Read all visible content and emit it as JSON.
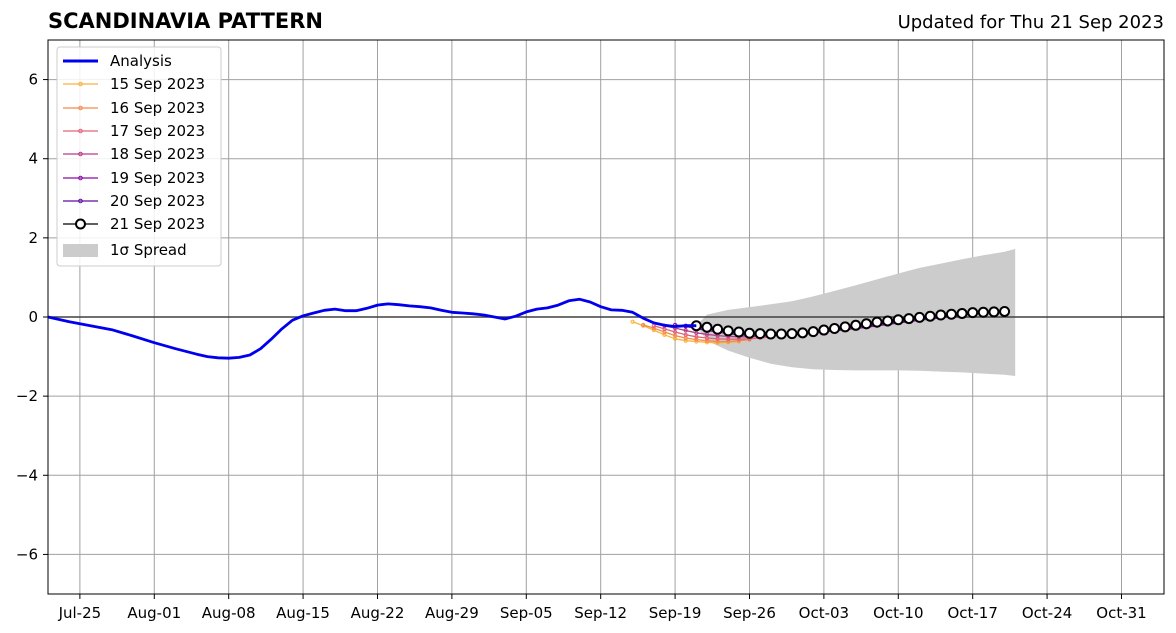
{
  "chart_data": {
    "type": "line",
    "title": "SCANDINAVIA PATTERN",
    "subtitle": "Updated for Thu 21 Sep 2023",
    "xlabel": "",
    "ylabel": "",
    "x_axis": {
      "start": "2023-07-22",
      "end": "2023-11-04",
      "tick_labels": [
        "Jul-25",
        "Aug-01",
        "Aug-08",
        "Aug-15",
        "Aug-22",
        "Aug-29",
        "Sep-05",
        "Sep-12",
        "Sep-19",
        "Sep-26",
        "Oct-03",
        "Oct-10",
        "Oct-17",
        "Oct-24",
        "Oct-31"
      ],
      "tick_dates": [
        "2023-07-25",
        "2023-08-01",
        "2023-08-08",
        "2023-08-15",
        "2023-08-22",
        "2023-08-29",
        "2023-09-05",
        "2023-09-12",
        "2023-09-19",
        "2023-09-26",
        "2023-10-03",
        "2023-10-10",
        "2023-10-17",
        "2023-10-24",
        "2023-10-31"
      ]
    },
    "y_axis": {
      "ylim": [
        -7,
        7
      ],
      "tick_values": [
        -6,
        -4,
        -2,
        0,
        2,
        4,
        6
      ],
      "tick_labels": [
        "−6",
        "−4",
        "−2",
        "0",
        "2",
        "4",
        "6"
      ]
    },
    "grid": true,
    "legend_position": "top-left",
    "analysis": {
      "name": "Analysis",
      "color": "#0000ee",
      "points": [
        [
          "2023-07-22",
          0.0
        ],
        [
          "2023-07-24",
          -0.12
        ],
        [
          "2023-07-26",
          -0.22
        ],
        [
          "2023-07-28",
          -0.32
        ],
        [
          "2023-07-30",
          -0.48
        ],
        [
          "2023-08-01",
          -0.65
        ],
        [
          "2023-08-03",
          -0.8
        ],
        [
          "2023-08-05",
          -0.94
        ],
        [
          "2023-08-06",
          -1.0
        ],
        [
          "2023-08-07",
          -1.03
        ],
        [
          "2023-08-08",
          -1.04
        ],
        [
          "2023-08-09",
          -1.02
        ],
        [
          "2023-08-10",
          -0.96
        ],
        [
          "2023-08-11",
          -0.8
        ],
        [
          "2023-08-12",
          -0.56
        ],
        [
          "2023-08-13",
          -0.3
        ],
        [
          "2023-08-14",
          -0.08
        ],
        [
          "2023-08-15",
          0.03
        ],
        [
          "2023-08-16",
          0.1
        ],
        [
          "2023-08-17",
          0.17
        ],
        [
          "2023-08-18",
          0.2
        ],
        [
          "2023-08-19",
          0.16
        ],
        [
          "2023-08-20",
          0.16
        ],
        [
          "2023-08-21",
          0.22
        ],
        [
          "2023-08-22",
          0.3
        ],
        [
          "2023-08-23",
          0.33
        ],
        [
          "2023-08-24",
          0.31
        ],
        [
          "2023-08-25",
          0.28
        ],
        [
          "2023-08-26",
          0.26
        ],
        [
          "2023-08-27",
          0.23
        ],
        [
          "2023-08-28",
          0.17
        ],
        [
          "2023-08-29",
          0.12
        ],
        [
          "2023-08-30",
          0.1
        ],
        [
          "2023-08-31",
          0.08
        ],
        [
          "2023-09-01",
          0.05
        ],
        [
          "2023-09-02",
          0.0
        ],
        [
          "2023-09-03",
          -0.05
        ],
        [
          "2023-09-04",
          0.02
        ],
        [
          "2023-09-05",
          0.13
        ],
        [
          "2023-09-06",
          0.2
        ],
        [
          "2023-09-07",
          0.23
        ],
        [
          "2023-09-08",
          0.3
        ],
        [
          "2023-09-09",
          0.41
        ],
        [
          "2023-09-10",
          0.45
        ],
        [
          "2023-09-11",
          0.38
        ],
        [
          "2023-09-12",
          0.26
        ],
        [
          "2023-09-13",
          0.18
        ],
        [
          "2023-09-14",
          0.17
        ],
        [
          "2023-09-15",
          0.12
        ],
        [
          "2023-09-16",
          -0.03
        ],
        [
          "2023-09-17",
          -0.15
        ],
        [
          "2023-09-18",
          -0.21
        ],
        [
          "2023-09-19",
          -0.24
        ],
        [
          "2023-09-20",
          -0.22
        ],
        [
          "2023-09-21",
          -0.22
        ]
      ]
    },
    "forecasts": [
      {
        "name": "15 Sep 2023",
        "color": "#fbb13c",
        "start": "2023-09-15",
        "values": [
          -0.12,
          -0.22,
          -0.33,
          -0.45,
          -0.55,
          -0.6,
          -0.62,
          -0.64,
          -0.65,
          -0.64,
          -0.62
        ]
      },
      {
        "name": "16 Sep 2023",
        "color": "#f48a4a",
        "start": "2023-09-16",
        "values": [
          -0.2,
          -0.28,
          -0.38,
          -0.47,
          -0.53,
          -0.57,
          -0.6,
          -0.62,
          -0.62,
          -0.6,
          -0.57
        ]
      },
      {
        "name": "17 Sep 2023",
        "color": "#e06477",
        "start": "2023-09-17",
        "values": [
          -0.22,
          -0.3,
          -0.38,
          -0.45,
          -0.5,
          -0.53,
          -0.55,
          -0.56,
          -0.56,
          -0.55,
          -0.53,
          -0.5
        ]
      },
      {
        "name": "18 Sep 2023",
        "color": "#b63b8a",
        "start": "2023-09-18",
        "values": [
          -0.22,
          -0.28,
          -0.34,
          -0.4,
          -0.44,
          -0.47,
          -0.49,
          -0.5,
          -0.5,
          -0.49,
          -0.47,
          -0.45,
          -0.43,
          -0.41,
          -0.38,
          -0.35,
          -0.32,
          -0.29,
          -0.26,
          -0.23,
          -0.19,
          -0.16,
          -0.12,
          -0.08,
          -0.05,
          -0.02,
          0.01,
          0.04,
          0.07,
          0.1
        ]
      },
      {
        "name": "19 Sep 2023",
        "color": "#8b0aa5",
        "start": "2023-09-19",
        "values": [
          -0.2,
          -0.24,
          -0.29,
          -0.34,
          -0.38,
          -0.42,
          -0.45,
          -0.47,
          -0.48,
          -0.48,
          -0.47,
          -0.45,
          -0.43,
          -0.41,
          -0.38,
          -0.35,
          -0.32,
          -0.29,
          -0.26,
          -0.22,
          -0.19,
          -0.15,
          -0.12,
          -0.08,
          -0.05,
          -0.02,
          0.01,
          0.04,
          0.07,
          0.1
        ]
      },
      {
        "name": "20 Sep 2023",
        "color": "#5a0fa0",
        "start": "2023-09-20",
        "values": [
          -0.22,
          -0.25,
          -0.3,
          -0.34,
          -0.38,
          -0.41,
          -0.43,
          -0.44,
          -0.44,
          -0.43,
          -0.41,
          -0.39,
          -0.37,
          -0.34,
          -0.31,
          -0.28,
          -0.25,
          -0.22,
          -0.19,
          -0.16,
          -0.12,
          -0.09,
          -0.06,
          -0.03,
          0.0,
          0.03,
          0.06,
          0.08,
          0.1,
          0.12
        ]
      },
      {
        "name": "21 Sep 2023",
        "color": "#000000",
        "start": "2023-09-21",
        "values": [
          -0.22,
          -0.26,
          -0.31,
          -0.35,
          -0.38,
          -0.41,
          -0.42,
          -0.43,
          -0.43,
          -0.42,
          -0.4,
          -0.37,
          -0.33,
          -0.29,
          -0.25,
          -0.21,
          -0.17,
          -0.13,
          -0.1,
          -0.07,
          -0.04,
          -0.01,
          0.02,
          0.05,
          0.07,
          0.09,
          0.11,
          0.12,
          0.13,
          0.14
        ]
      }
    ],
    "spread": {
      "name": "1σ Spread",
      "color": "#cccccc",
      "points": [
        [
          "2023-09-21",
          -0.22,
          -0.22
        ],
        [
          "2023-09-22",
          0.06,
          -0.6
        ],
        [
          "2023-09-24",
          0.18,
          -0.85
        ],
        [
          "2023-09-26",
          0.25,
          -1.03
        ],
        [
          "2023-09-28",
          0.32,
          -1.18
        ],
        [
          "2023-09-30",
          0.4,
          -1.27
        ],
        [
          "2023-10-02",
          0.52,
          -1.32
        ],
        [
          "2023-10-04",
          0.66,
          -1.34
        ],
        [
          "2023-10-06",
          0.8,
          -1.35
        ],
        [
          "2023-10-08",
          0.95,
          -1.35
        ],
        [
          "2023-10-10",
          1.1,
          -1.35
        ],
        [
          "2023-10-12",
          1.24,
          -1.36
        ],
        [
          "2023-10-14",
          1.35,
          -1.38
        ],
        [
          "2023-10-16",
          1.46,
          -1.4
        ],
        [
          "2023-10-18",
          1.56,
          -1.43
        ],
        [
          "2023-10-20",
          1.65,
          -1.46
        ],
        [
          "2023-10-21",
          1.72,
          -1.49
        ]
      ]
    },
    "legend": [
      {
        "label": "Analysis",
        "color": "#0000ee",
        "style": "thick-line"
      },
      {
        "label": "15 Sep 2023",
        "color": "#fbb13c",
        "style": "line-dot"
      },
      {
        "label": "16 Sep 2023",
        "color": "#f48a4a",
        "style": "line-dot"
      },
      {
        "label": "17 Sep 2023",
        "color": "#e06477",
        "style": "line-dot"
      },
      {
        "label": "18 Sep 2023",
        "color": "#b63b8a",
        "style": "line-dot"
      },
      {
        "label": "19 Sep 2023",
        "color": "#8b0aa5",
        "style": "line-dot"
      },
      {
        "label": "20 Sep 2023",
        "color": "#5a0fa0",
        "style": "line-dot"
      },
      {
        "label": "21 Sep 2023",
        "color": "#000000",
        "style": "line-circle"
      },
      {
        "label": "1σ Spread",
        "color": "#cccccc",
        "style": "patch"
      }
    ]
  }
}
